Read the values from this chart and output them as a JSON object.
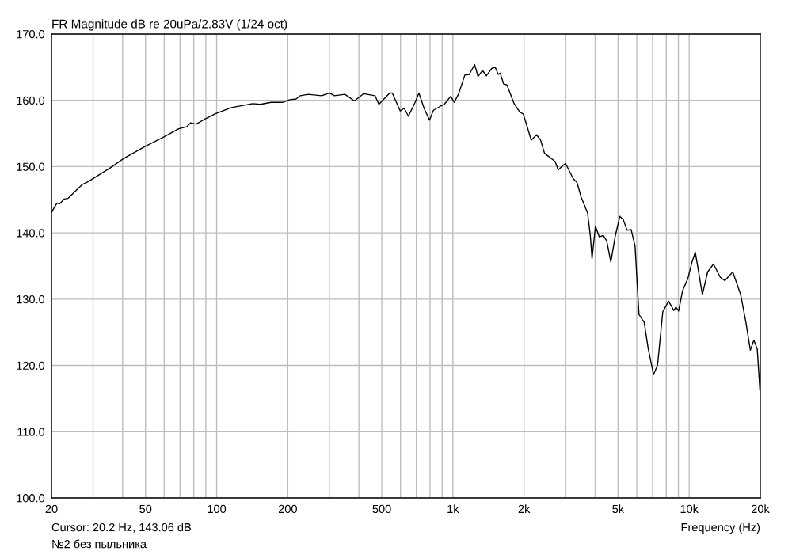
{
  "chart_data": {
    "type": "line",
    "title": "FR Magnitude dB re 20uPa/2.83V (1/24 oct)",
    "xlabel": "Frequency (Hz)",
    "annotations": [
      "Cursor: 20.2 Hz, 143.06 dB",
      "№2 без пыльника"
    ],
    "log": "x",
    "grid": true,
    "legend": false,
    "marker": "none",
    "line_style": "solid",
    "xlim": [
      20,
      20000
    ],
    "ylim": [
      100,
      170
    ],
    "xticks": [
      20,
      {
        "value": 30,
        "label": null
      },
      {
        "value": 40,
        "label": null
      },
      50,
      {
        "value": 60,
        "label": null
      },
      {
        "value": 70,
        "label": null
      },
      {
        "value": 80,
        "label": null
      },
      {
        "value": 90,
        "label": null
      },
      100,
      200,
      {
        "value": 300,
        "label": null
      },
      {
        "value": 400,
        "label": null
      },
      500,
      {
        "value": 600,
        "label": null
      },
      {
        "value": 700,
        "label": null
      },
      {
        "value": 800,
        "label": null
      },
      {
        "value": 900,
        "label": null
      },
      {
        "value": 1000,
        "label": "1k"
      },
      {
        "value": 2000,
        "label": "2k"
      },
      {
        "value": 3000,
        "label": null
      },
      {
        "value": 4000,
        "label": null
      },
      {
        "value": 5000,
        "label": "5k"
      },
      {
        "value": 6000,
        "label": null
      },
      {
        "value": 7000,
        "label": null
      },
      {
        "value": 8000,
        "label": null
      },
      {
        "value": 9000,
        "label": null
      },
      {
        "value": 10000,
        "label": "10k"
      },
      {
        "value": 20000,
        "label": "20k"
      }
    ],
    "yticks": [
      {
        "value": 100,
        "label": "100.0"
      },
      {
        "value": 110,
        "label": "110.0"
      },
      {
        "value": 120,
        "label": "120.0"
      },
      {
        "value": 130,
        "label": "130.0"
      },
      {
        "value": 140,
        "label": "140.0"
      },
      {
        "value": 150,
        "label": "150.0"
      },
      {
        "value": 160,
        "label": "160.0"
      },
      {
        "value": 170,
        "label": "170.0"
      }
    ],
    "series": [
      {
        "color": "#000000",
        "x": [
          20,
          21.1,
          21.7,
          22.6,
          23.5,
          27.0,
          28.8,
          35.4,
          40.3,
          49.5,
          59.2,
          69.1,
          74.7,
          77.5,
          81.7,
          89.5,
          99.2,
          115.6,
          142,
          153,
          170,
          191,
          204,
          217,
          226,
          244,
          278,
          300,
          315,
          349,
          383,
          419,
          468,
          486,
          540,
          554,
          598,
          622,
          648,
          690,
          718,
          755,
          796,
          827,
          884,
          919,
          979,
          1013,
          1058,
          1123,
          1173,
          1235,
          1277,
          1334,
          1386,
          1460,
          1509,
          1556,
          1585,
          1638,
          1694,
          1816,
          1912,
          1987,
          2146,
          2259,
          2349,
          2442,
          2706,
          2790,
          2995,
          3227,
          3350,
          3489,
          3715,
          3815,
          3880,
          4010,
          4165,
          4330,
          4475,
          4660,
          4870,
          5090,
          5260,
          5460,
          5680,
          5900,
          6130,
          6450,
          6710,
          7070,
          7350,
          7730,
          8180,
          8610,
          8790,
          9020,
          9380,
          9870,
          10260,
          10610,
          11370,
          11970,
          12670,
          13540,
          14150,
          15290,
          16510,
          17380,
          18150,
          18780,
          19410,
          19900,
          20000
        ],
        "values": [
          143.1,
          144.5,
          144.4,
          145.1,
          145.2,
          147.3,
          147.8,
          149.8,
          151.2,
          153.0,
          154.4,
          155.7,
          156.0,
          156.6,
          156.4,
          157.2,
          158.0,
          158.9,
          159.5,
          159.4,
          159.7,
          159.7,
          160.1,
          160.2,
          160.7,
          160.9,
          160.7,
          161.1,
          160.7,
          160.9,
          159.9,
          161.0,
          160.7,
          159.4,
          161.1,
          161.1,
          158.4,
          158.8,
          157.6,
          159.6,
          161.1,
          158.8,
          157.0,
          158.5,
          159.1,
          159.4,
          160.6,
          159.7,
          161.0,
          163.8,
          163.9,
          165.4,
          163.6,
          164.5,
          163.7,
          164.8,
          165.0,
          163.9,
          164.1,
          162.5,
          162.3,
          159.5,
          158.3,
          157.9,
          154.0,
          154.8,
          154.0,
          152.0,
          150.8,
          149.5,
          150.5,
          148.2,
          147.6,
          145.4,
          143.0,
          139.6,
          136.1,
          141.0,
          139.4,
          139.6,
          138.8,
          135.6,
          139.6,
          142.5,
          142.0,
          140.4,
          140.5,
          138.0,
          127.7,
          126.5,
          122.5,
          118.6,
          120.1,
          128.1,
          129.7,
          128.3,
          128.8,
          128.2,
          131.3,
          133.1,
          135.5,
          137.1,
          130.7,
          134.1,
          135.3,
          133.3,
          132.8,
          134.1,
          130.7,
          126.5,
          122.3,
          123.8,
          122.5,
          116.5,
          115.7
        ]
      }
    ]
  }
}
